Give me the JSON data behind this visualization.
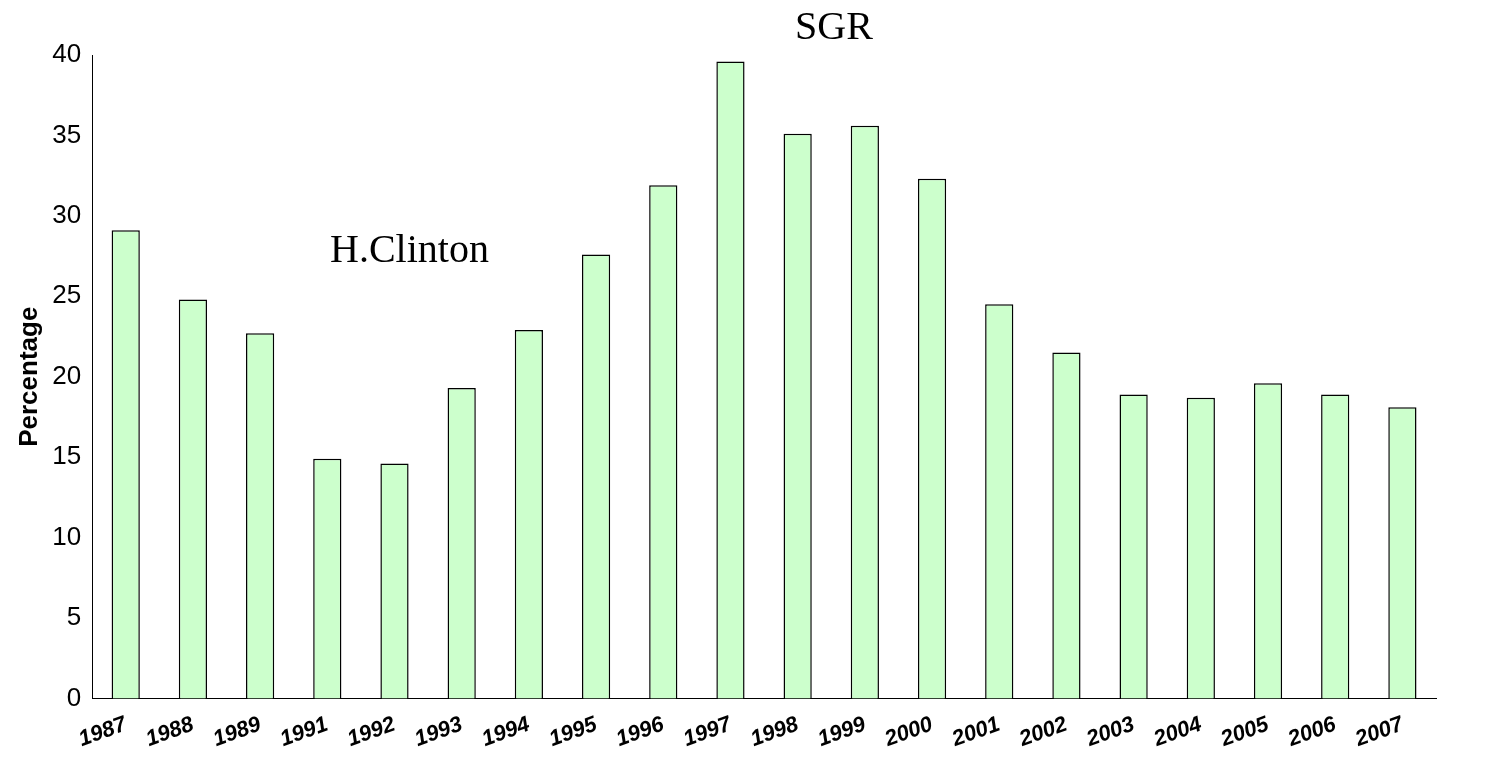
{
  "chart_data": {
    "type": "bar",
    "ylabel": "Percentage",
    "categories": [
      "1987",
      "1988",
      "1989",
      "1991",
      "1992",
      "1993",
      "1994",
      "1995",
      "1996",
      "1997",
      "1998",
      "1999",
      "2000",
      "2001",
      "2002",
      "2003",
      "2004",
      "2005",
      "2006",
      "2007"
    ],
    "values": [
      29.1,
      24.8,
      22.7,
      14.9,
      14.6,
      19.3,
      22.9,
      27.6,
      31.9,
      39.6,
      35.1,
      35.6,
      32.3,
      24.5,
      21.5,
      18.9,
      18.7,
      19.6,
      18.9,
      18.1
    ],
    "color": "#ccffcc",
    "ylim": [
      0,
      40
    ],
    "yticks": [
      0,
      5,
      10,
      15,
      20,
      25,
      30,
      35,
      40
    ],
    "grid": false,
    "legend": false,
    "annotations": [
      "H.Clinton",
      "SGR"
    ]
  }
}
